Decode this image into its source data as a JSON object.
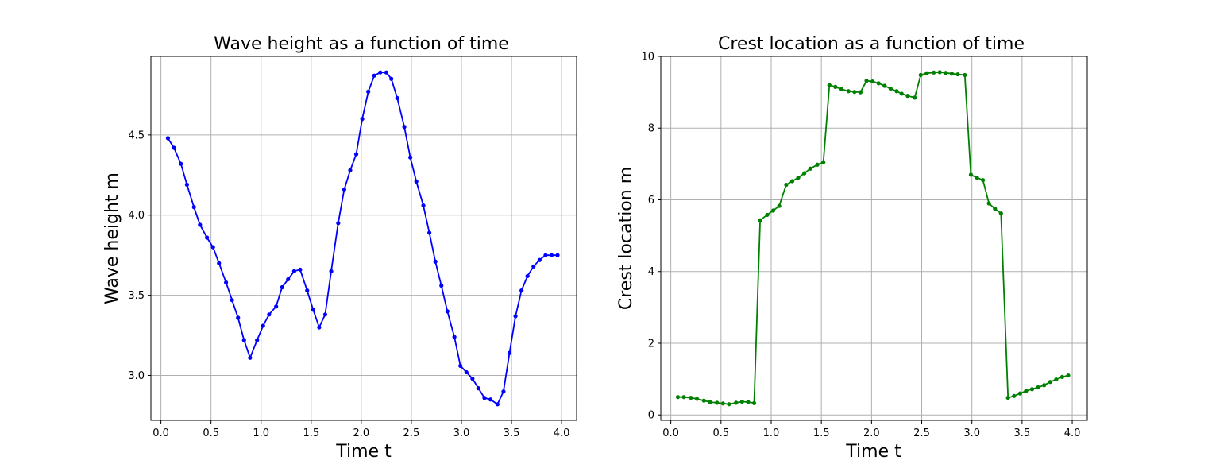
{
  "chart_data": [
    {
      "type": "line",
      "title": "Wave height as a function of time",
      "xlabel": "Time t",
      "ylabel": "Wave height m",
      "xlim": [
        -0.1,
        4.15
      ],
      "ylim": [
        2.72,
        4.99
      ],
      "xticks": [
        "0.0",
        "0.5",
        "1.0",
        "1.5",
        "2.0",
        "2.5",
        "3.0",
        "3.5",
        "4.0"
      ],
      "yticks": [
        "3.0",
        "3.5",
        "4.0",
        "4.5"
      ],
      "grid": true,
      "color": "#0000ff",
      "marker": "dot",
      "x": [
        0.07,
        0.13,
        0.2,
        0.26,
        0.33,
        0.39,
        0.46,
        0.52,
        0.58,
        0.65,
        0.71,
        0.77,
        0.83,
        0.89,
        0.96,
        1.02,
        1.08,
        1.15,
        1.21,
        1.27,
        1.33,
        1.39,
        1.46,
        1.52,
        1.58,
        1.64,
        1.7,
        1.77,
        1.83,
        1.89,
        1.95,
        2.01,
        2.07,
        2.13,
        2.19,
        2.25,
        2.3,
        2.36,
        2.43,
        2.49,
        2.55,
        2.62,
        2.68,
        2.74,
        2.8,
        2.86,
        2.93,
        2.99,
        3.05,
        3.11,
        3.17,
        3.23,
        3.29,
        3.36,
        3.42,
        3.48,
        3.54,
        3.6,
        3.66,
        3.72,
        3.78,
        3.84,
        3.9,
        3.96
      ],
      "y": [
        4.48,
        4.42,
        4.32,
        4.19,
        4.05,
        3.94,
        3.86,
        3.8,
        3.7,
        3.58,
        3.47,
        3.36,
        3.22,
        3.11,
        3.22,
        3.31,
        3.38,
        3.43,
        3.55,
        3.6,
        3.65,
        3.66,
        3.53,
        3.41,
        3.3,
        3.38,
        3.65,
        3.95,
        4.16,
        4.28,
        4.38,
        4.6,
        4.77,
        4.87,
        4.89,
        4.89,
        4.85,
        4.73,
        4.55,
        4.36,
        4.21,
        4.06,
        3.89,
        3.71,
        3.56,
        3.4,
        3.24,
        3.06,
        3.02,
        2.98,
        2.92,
        2.86,
        2.85,
        2.82,
        2.9,
        3.14,
        3.37,
        3.53,
        3.62,
        3.68,
        3.72,
        3.75,
        3.75,
        3.75
      ]
    },
    {
      "type": "line",
      "title": "Crest location as a function of time",
      "xlabel": "Time t",
      "ylabel": "Crest location m",
      "xlim": [
        -0.1,
        4.15
      ],
      "ylim": [
        -0.15,
        10.0
      ],
      "xticks": [
        "0.0",
        "0.5",
        "1.0",
        "1.5",
        "2.0",
        "2.5",
        "3.0",
        "3.5",
        "4.0"
      ],
      "yticks": [
        "0",
        "2",
        "4",
        "6",
        "8",
        "10"
      ],
      "grid": true,
      "color": "#008000",
      "marker": "dot",
      "x": [
        0.07,
        0.13,
        0.2,
        0.26,
        0.33,
        0.39,
        0.46,
        0.52,
        0.58,
        0.65,
        0.71,
        0.77,
        0.83,
        0.89,
        0.96,
        1.02,
        1.08,
        1.15,
        1.21,
        1.27,
        1.33,
        1.39,
        1.46,
        1.52,
        1.58,
        1.64,
        1.7,
        1.77,
        1.83,
        1.89,
        1.95,
        2.01,
        2.07,
        2.13,
        2.19,
        2.25,
        2.3,
        2.36,
        2.43,
        2.49,
        2.55,
        2.62,
        2.68,
        2.74,
        2.8,
        2.86,
        2.93,
        2.99,
        3.05,
        3.11,
        3.17,
        3.23,
        3.29,
        3.36,
        3.42,
        3.48,
        3.54,
        3.6,
        3.66,
        3.72,
        3.78,
        3.84,
        3.9,
        3.96
      ],
      "y": [
        0.5,
        0.5,
        0.48,
        0.45,
        0.4,
        0.36,
        0.34,
        0.32,
        0.3,
        0.34,
        0.37,
        0.36,
        0.33,
        5.43,
        5.58,
        5.7,
        5.83,
        6.42,
        6.52,
        6.62,
        6.74,
        6.87,
        6.98,
        7.05,
        9.2,
        9.15,
        9.09,
        9.03,
        9.01,
        9.0,
        9.32,
        9.3,
        9.25,
        9.18,
        9.1,
        9.03,
        8.96,
        8.9,
        8.85,
        9.48,
        9.53,
        9.55,
        9.56,
        9.54,
        9.52,
        9.5,
        9.48,
        6.7,
        6.62,
        6.55,
        5.9,
        5.75,
        5.62,
        0.48,
        0.53,
        0.6,
        0.67,
        0.72,
        0.77,
        0.83,
        0.92,
        0.99,
        1.06,
        1.1
      ]
    }
  ]
}
